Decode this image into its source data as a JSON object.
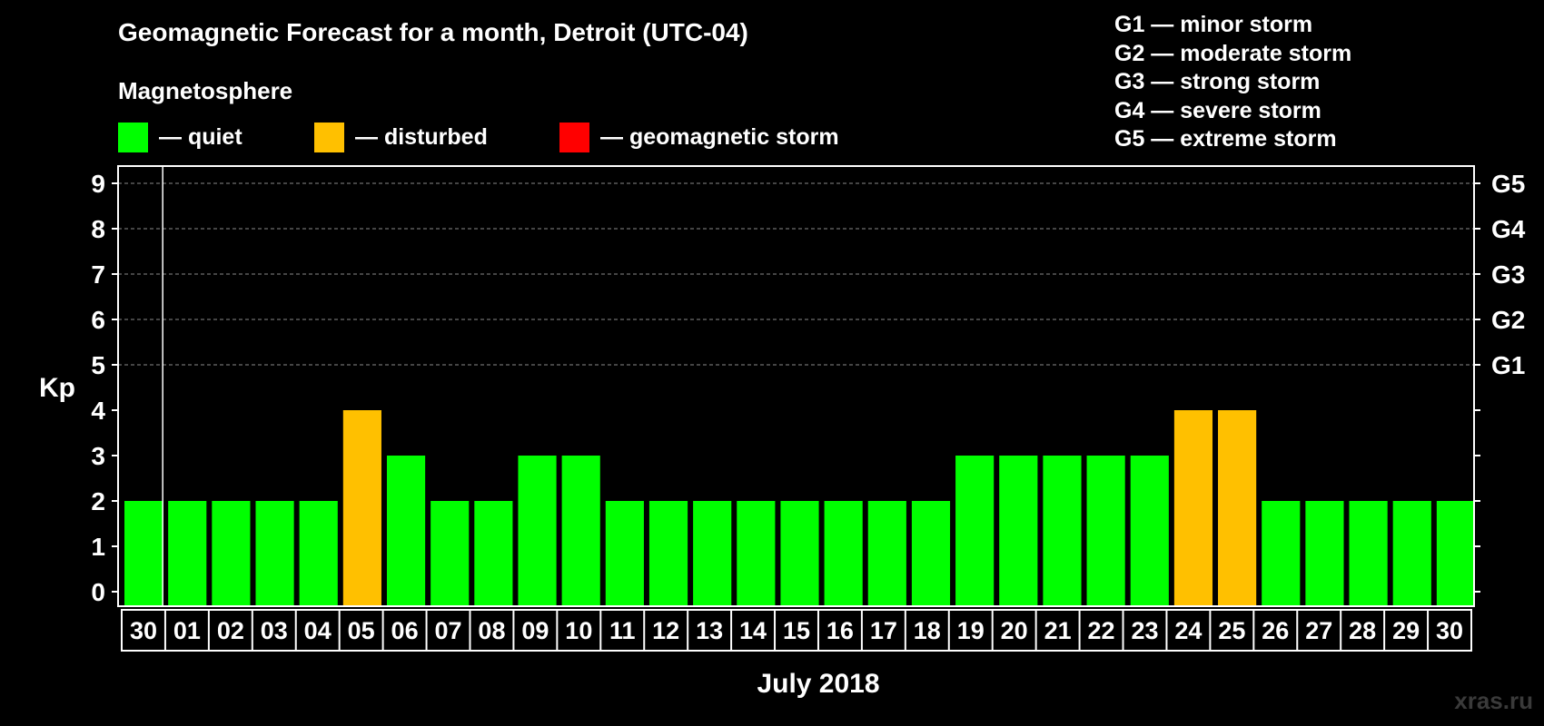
{
  "header": {
    "title": "Geomagnetic Forecast for a month, Detroit (UTC-04)",
    "subtitle": "Magnetosphere"
  },
  "legend": [
    {
      "label": "— quiet",
      "color": "#00ff00"
    },
    {
      "label": "— disturbed",
      "color": "#ffc000"
    },
    {
      "label": "— geomagnetic storm",
      "color": "#ff0000"
    }
  ],
  "storm_scale": [
    "G1 — minor storm",
    "G2 — moderate storm",
    "G3 — strong storm",
    "G4 — severe storm",
    "G5 — extreme storm"
  ],
  "watermark": "xras.ru",
  "chart_data": {
    "type": "bar",
    "title": "Geomagnetic Forecast for a month, Detroit (UTC-04)",
    "xlabel": "July 2018",
    "ylabel": "Kp",
    "ylim": [
      0,
      9
    ],
    "yticks": [
      "0",
      "1",
      "2",
      "3",
      "4",
      "5",
      "6",
      "7",
      "8",
      "9"
    ],
    "right_axis_labels": [
      {
        "kp": 5,
        "label": "G1"
      },
      {
        "kp": 6,
        "label": "G2"
      },
      {
        "kp": 7,
        "label": "G3"
      },
      {
        "kp": 8,
        "label": "G4"
      },
      {
        "kp": 9,
        "label": "G5"
      }
    ],
    "grid": "horizontal dashed at Kp 5–9",
    "categories": [
      "30",
      "01",
      "02",
      "03",
      "04",
      "05",
      "06",
      "07",
      "08",
      "09",
      "10",
      "11",
      "12",
      "13",
      "14",
      "15",
      "16",
      "17",
      "18",
      "19",
      "20",
      "21",
      "22",
      "23",
      "24",
      "25",
      "26",
      "27",
      "28",
      "29",
      "30"
    ],
    "values": [
      2,
      2,
      2,
      2,
      2,
      4,
      3,
      2,
      2,
      3,
      3,
      2,
      2,
      2,
      2,
      2,
      2,
      2,
      2,
      3,
      3,
      3,
      3,
      3,
      4,
      4,
      2,
      2,
      2,
      2,
      2
    ],
    "colors": {
      "quiet": "#00ff00",
      "disturbed": "#ffc000",
      "storm": "#ff0000"
    }
  }
}
